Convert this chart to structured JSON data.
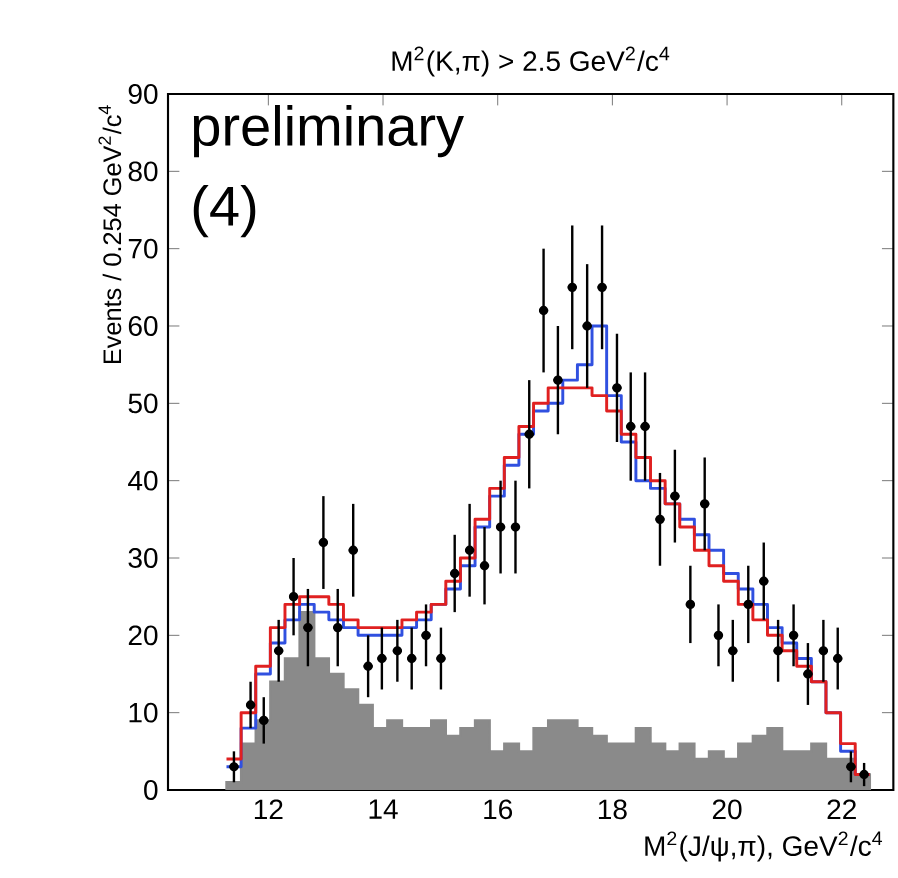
{
  "chart_data": {
    "type": "histogram",
    "title": "M$^{2}$(K,π) > 2.5 GeV$^{2}$/c$^{4}$",
    "xlabel": "M$^{2}$(J/ψ,π), GeV$^{2}$/c$^{4}$",
    "ylabel": "Events / 0.254 GeV$^{2}$/c$^{4}$",
    "annotations": [
      "preliminary",
      "(4)"
    ],
    "xlim": [
      10.25,
      22.9
    ],
    "ylim": [
      0,
      90
    ],
    "xticks": [
      12,
      14,
      16,
      18,
      20,
      22
    ],
    "yticks": [
      0,
      10,
      20,
      30,
      40,
      50,
      60,
      70,
      80,
      90
    ],
    "bins": [
      11.27,
      11.525,
      11.78,
      12.035,
      12.29,
      12.545,
      12.8,
      13.055,
      13.31,
      13.565,
      13.82,
      14.075,
      14.33,
      14.585,
      14.84,
      15.095,
      15.35,
      15.605,
      15.86,
      16.115,
      16.37,
      16.625,
      16.88,
      17.135,
      17.39,
      17.645,
      17.9,
      18.155,
      18.41,
      18.665,
      18.92,
      19.175,
      19.43,
      19.685,
      19.94,
      20.195,
      20.45,
      20.705,
      20.96,
      21.215,
      21.47,
      21.725,
      21.98,
      22.235,
      22.49
    ],
    "series": [
      {
        "type": "histogram",
        "color": "#8a8a8a",
        "values": [
          1,
          6,
          9,
          14,
          17,
          23,
          17,
          15,
          13,
          11,
          8,
          9,
          8,
          8,
          9,
          7,
          8,
          9,
          5,
          6,
          5,
          8,
          9,
          9,
          8,
          7,
          6,
          6,
          8,
          6,
          5,
          6,
          4,
          5,
          4,
          6,
          7,
          8,
          5,
          5,
          6,
          4,
          4,
          2
        ]
      },
      {
        "type": "step",
        "color": "#3050e0",
        "x": [
          11.27,
          11.525,
          11.78,
          12.035,
          12.29,
          12.545,
          12.8,
          13.055,
          13.31,
          13.565,
          13.82,
          14.075,
          14.33,
          14.585,
          14.84,
          15.095,
          15.35,
          15.605,
          15.86,
          16.115,
          16.37,
          16.625,
          16.88,
          17.135,
          17.39,
          17.645,
          17.9,
          18.155,
          18.41,
          18.665,
          18.92,
          19.175,
          19.43,
          19.685,
          19.94,
          20.195,
          20.45,
          20.705,
          20.96,
          21.215,
          21.47,
          21.725,
          21.98,
          22.235,
          22.49
        ],
        "values": [
          3,
          8,
          15,
          19,
          22,
          24,
          23,
          22,
          21,
          20,
          20,
          20,
          21,
          22,
          24,
          26,
          29,
          34,
          38,
          42,
          46,
          49,
          50,
          53,
          55,
          60,
          51,
          45,
          40,
          39,
          37,
          35,
          33,
          31,
          28,
          26,
          24,
          21,
          19,
          17,
          14,
          10,
          5,
          2,
          2
        ]
      },
      {
        "type": "step",
        "color": "#e02020",
        "x": [
          11.27,
          11.525,
          11.78,
          12.035,
          12.29,
          12.545,
          12.8,
          13.055,
          13.31,
          13.565,
          13.82,
          14.075,
          14.33,
          14.585,
          14.84,
          15.095,
          15.35,
          15.605,
          15.86,
          16.115,
          16.37,
          16.625,
          16.88,
          17.135,
          17.39,
          17.645,
          17.9,
          18.155,
          18.41,
          18.665,
          18.92,
          19.175,
          19.43,
          19.685,
          19.94,
          20.195,
          20.45,
          20.705,
          20.96,
          21.215,
          21.47,
          21.725,
          21.98,
          22.235,
          22.49
        ],
        "values": [
          4,
          10,
          16,
          21,
          24,
          25,
          25,
          24,
          22,
          21,
          21,
          21,
          22,
          23,
          24,
          27,
          30,
          35,
          39,
          43,
          47,
          50,
          52,
          52,
          52,
          51,
          49,
          46,
          43,
          40,
          37,
          34,
          31,
          29,
          27,
          24,
          22,
          20,
          18,
          16,
          14,
          10,
          6,
          2,
          2
        ]
      },
      {
        "type": "scatter",
        "color": "#000000",
        "marker": "circle",
        "x": [
          11.4,
          11.69,
          11.92,
          12.18,
          12.44,
          12.69,
          12.96,
          13.21,
          13.48,
          13.74,
          13.98,
          14.25,
          14.5,
          14.75,
          15.01,
          15.25,
          15.51,
          15.77,
          16.05,
          16.31,
          16.55,
          16.8,
          17.05,
          17.3,
          17.56,
          17.82,
          18.08,
          18.32,
          18.57,
          18.83,
          19.09,
          19.36,
          19.61,
          19.85,
          20.1,
          20.37,
          20.64,
          20.89,
          21.16,
          21.41,
          21.68,
          21.93,
          22.16,
          22.39
        ],
        "values": [
          3,
          11,
          9,
          18,
          25,
          21,
          32,
          21,
          31,
          16,
          17,
          18,
          17,
          20,
          17,
          28,
          31,
          29,
          34,
          34,
          46,
          62,
          53,
          65,
          60,
          65,
          52,
          47,
          47,
          35,
          38,
          24,
          37,
          20,
          18,
          24,
          27,
          18,
          20,
          15,
          18,
          17,
          3,
          2
        ],
        "errors": [
          2,
          3,
          3,
          4,
          5,
          5,
          6,
          5,
          6,
          4,
          4,
          4,
          4,
          4,
          4,
          5,
          6,
          5,
          6,
          6,
          7,
          8,
          7,
          8,
          8,
          8,
          7,
          7,
          7,
          6,
          6,
          5,
          6,
          4,
          4,
          5,
          5,
          4,
          4,
          4,
          4,
          4,
          2,
          1.5
        ],
        "xerrors": [
          0.08,
          0.08,
          0.08,
          0.08,
          0.08,
          0.08,
          0.08,
          0.08,
          0.08,
          0.08,
          0.08,
          0.08,
          0.08,
          0.08,
          0.08,
          0.08,
          0.08,
          0.08,
          0.08,
          0.08,
          0.08,
          0.08,
          0.08,
          0.08,
          0.08,
          0.08,
          0.08,
          0.08,
          0.08,
          0.08,
          0.08,
          0.08,
          0.08,
          0.08,
          0.08,
          0.08,
          0.08,
          0.08,
          0.08,
          0.08,
          0.08,
          0.08,
          0.08,
          0.08
        ]
      }
    ]
  }
}
